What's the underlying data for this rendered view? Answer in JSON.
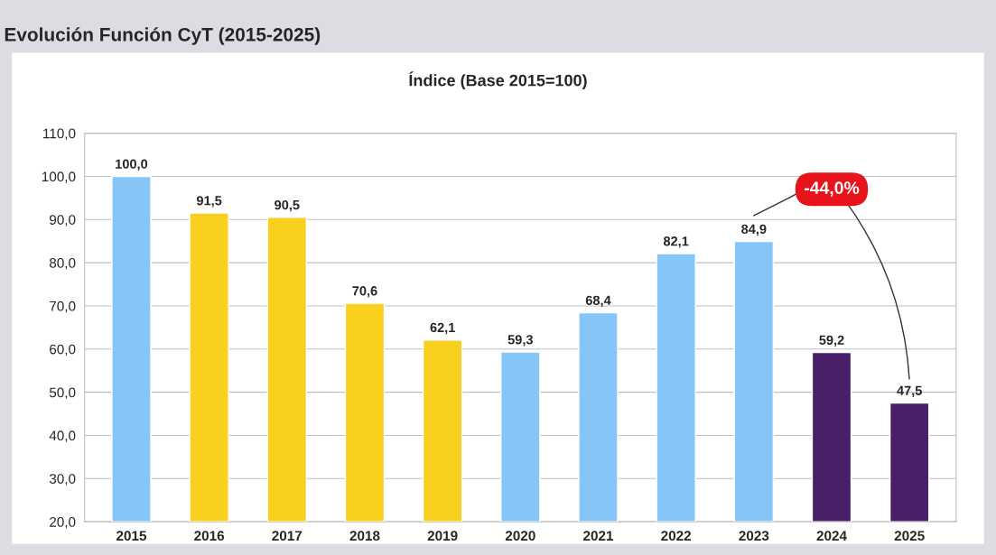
{
  "chart_data": {
    "type": "bar",
    "title": "Evolución Función CyT (2015-2025)",
    "subtitle": "Índice (Base 2015=100)",
    "categories": [
      "2015",
      "2016",
      "2017",
      "2018",
      "2019",
      "2020",
      "2021",
      "2022",
      "2023",
      "2024",
      "2025"
    ],
    "values": [
      100.0,
      91.5,
      90.5,
      70.6,
      62.1,
      59.3,
      68.4,
      82.1,
      84.9,
      59.2,
      47.5
    ],
    "value_labels": [
      "100,0",
      "91,5",
      "90,5",
      "70,6",
      "62,1",
      "59,3",
      "68,4",
      "82,1",
      "84,9",
      "59,2",
      "47,5"
    ],
    "colors": [
      "#85c5f7",
      "#f9d01e",
      "#f9d01e",
      "#f9d01e",
      "#f9d01e",
      "#85c5f7",
      "#85c5f7",
      "#85c5f7",
      "#85c5f7",
      "#4a1f6a",
      "#4a1f6a"
    ],
    "ylim": [
      20,
      110
    ],
    "yticks": [
      {
        "value": 20,
        "label": "20,0"
      },
      {
        "value": 30,
        "label": "30,0"
      },
      {
        "value": 40,
        "label": "40,0"
      },
      {
        "value": 50,
        "label": "50,0"
      },
      {
        "value": 60,
        "label": "60,0"
      },
      {
        "value": 70,
        "label": "70,0"
      },
      {
        "value": 80,
        "label": "80,0"
      },
      {
        "value": 90,
        "label": "90,0"
      },
      {
        "value": 100,
        "label": "100,0"
      },
      {
        "value": 110,
        "label": "110,0"
      }
    ],
    "grid": "y",
    "annotations": [
      "-44,0%"
    ]
  }
}
